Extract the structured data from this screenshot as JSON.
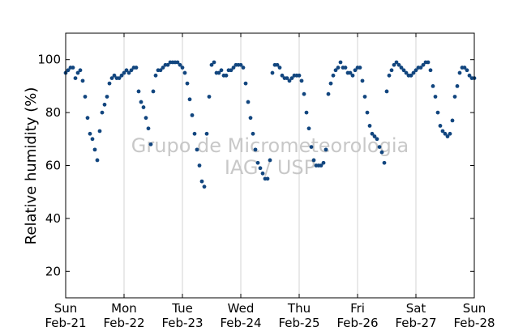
{
  "chart_data": {
    "type": "scatter",
    "title": "",
    "xlabel": "",
    "ylabel": "Relative humidity (%)",
    "ylim": [
      10,
      110
    ],
    "yticks": [
      20,
      40,
      60,
      80,
      100
    ],
    "xlim": [
      "2015-02-21 00:00",
      "2015-02-28 00:00"
    ],
    "xticks": [
      {
        "day": "Sun",
        "date": "Feb-21"
      },
      {
        "day": "Mon",
        "date": "Feb-22"
      },
      {
        "day": "Tue",
        "date": "Feb-23"
      },
      {
        "day": "Wed",
        "date": "Feb-24"
      },
      {
        "day": "Thu",
        "date": "Feb-25"
      },
      {
        "day": "Fri",
        "date": "Feb-26"
      },
      {
        "day": "Sat",
        "date": "Feb-27"
      },
      {
        "day": "Sun",
        "date": "Feb-28"
      }
    ],
    "grid": "vertical",
    "watermark": [
      "Grupo de Micrometeorologia",
      "IAG / USP"
    ],
    "marker_color": "#12467f",
    "series": [
      {
        "x": [
          "2015-02-21 00:00",
          "2015-02-21 01:00",
          "2015-02-21 02:00",
          "2015-02-21 03:00",
          "2015-02-21 04:00",
          "2015-02-21 05:00",
          "2015-02-21 06:00",
          "2015-02-21 07:00",
          "2015-02-21 08:00",
          "2015-02-21 09:00",
          "2015-02-21 10:00",
          "2015-02-21 11:00",
          "2015-02-21 12:00",
          "2015-02-21 13:00",
          "2015-02-21 14:00",
          "2015-02-21 15:00",
          "2015-02-21 16:00",
          "2015-02-21 17:00",
          "2015-02-21 18:00",
          "2015-02-21 19:00",
          "2015-02-21 20:00",
          "2015-02-21 21:00",
          "2015-02-21 22:00",
          "2015-02-21 23:00",
          "2015-02-22 00:00",
          "2015-02-22 01:00",
          "2015-02-22 02:00",
          "2015-02-22 03:00",
          "2015-02-22 04:00",
          "2015-02-22 05:00",
          "2015-02-22 06:00",
          "2015-02-22 07:00",
          "2015-02-22 08:00",
          "2015-02-22 09:00",
          "2015-02-22 10:00",
          "2015-02-22 11:00",
          "2015-02-22 12:00",
          "2015-02-22 13:00",
          "2015-02-22 14:00",
          "2015-02-22 15:00",
          "2015-02-22 16:00",
          "2015-02-22 17:00",
          "2015-02-22 18:00",
          "2015-02-22 19:00",
          "2015-02-22 20:00",
          "2015-02-22 21:00",
          "2015-02-22 22:00",
          "2015-02-22 23:00",
          "2015-02-23 00:00",
          "2015-02-23 01:00",
          "2015-02-23 02:00",
          "2015-02-23 03:00",
          "2015-02-23 04:00",
          "2015-02-23 05:00",
          "2015-02-23 06:00",
          "2015-02-23 07:00",
          "2015-02-23 08:00",
          "2015-02-23 09:00",
          "2015-02-23 10:00",
          "2015-02-23 11:00",
          "2015-02-23 12:00",
          "2015-02-23 13:00",
          "2015-02-23 14:00",
          "2015-02-23 15:00",
          "2015-02-23 16:00",
          "2015-02-23 17:00",
          "2015-02-23 18:00",
          "2015-02-23 19:00",
          "2015-02-23 20:00",
          "2015-02-23 21:00",
          "2015-02-23 22:00",
          "2015-02-23 23:00",
          "2015-02-24 00:00",
          "2015-02-24 01:00",
          "2015-02-24 02:00",
          "2015-02-24 03:00",
          "2015-02-24 04:00",
          "2015-02-24 05:00",
          "2015-02-24 06:00",
          "2015-02-24 07:00",
          "2015-02-24 08:00",
          "2015-02-24 09:00",
          "2015-02-24 10:00",
          "2015-02-24 11:00",
          "2015-02-24 12:00",
          "2015-02-24 13:00",
          "2015-02-24 14:00",
          "2015-02-24 15:00",
          "2015-02-24 16:00",
          "2015-02-24 17:00",
          "2015-02-24 18:00",
          "2015-02-24 19:00",
          "2015-02-24 20:00",
          "2015-02-24 21:00",
          "2015-02-24 22:00",
          "2015-02-24 23:00",
          "2015-02-25 00:00",
          "2015-02-25 01:00",
          "2015-02-25 02:00",
          "2015-02-25 03:00",
          "2015-02-25 04:00",
          "2015-02-25 05:00",
          "2015-02-25 06:00",
          "2015-02-25 07:00",
          "2015-02-25 08:00",
          "2015-02-25 09:00",
          "2015-02-25 10:00",
          "2015-02-25 11:00",
          "2015-02-25 12:00",
          "2015-02-25 13:00",
          "2015-02-25 14:00",
          "2015-02-25 15:00",
          "2015-02-25 16:00",
          "2015-02-25 17:00",
          "2015-02-25 18:00",
          "2015-02-25 19:00",
          "2015-02-25 20:00",
          "2015-02-25 21:00",
          "2015-02-25 22:00",
          "2015-02-25 23:00",
          "2015-02-26 00:00",
          "2015-02-26 01:00",
          "2015-02-26 02:00",
          "2015-02-26 03:00",
          "2015-02-26 04:00",
          "2015-02-26 05:00",
          "2015-02-26 06:00",
          "2015-02-26 07:00",
          "2015-02-26 08:00",
          "2015-02-26 09:00",
          "2015-02-26 10:00",
          "2015-02-26 11:00",
          "2015-02-26 12:00",
          "2015-02-26 13:00",
          "2015-02-26 14:00",
          "2015-02-26 15:00",
          "2015-02-26 16:00",
          "2015-02-26 17:00",
          "2015-02-26 18:00",
          "2015-02-26 19:00",
          "2015-02-26 20:00",
          "2015-02-26 21:00",
          "2015-02-26 22:00",
          "2015-02-26 23:00",
          "2015-02-27 00:00",
          "2015-02-27 01:00",
          "2015-02-27 02:00",
          "2015-02-27 03:00",
          "2015-02-27 04:00",
          "2015-02-27 05:00",
          "2015-02-27 06:00",
          "2015-02-27 07:00",
          "2015-02-27 08:00",
          "2015-02-27 09:00",
          "2015-02-27 10:00",
          "2015-02-27 11:00",
          "2015-02-27 12:00",
          "2015-02-27 13:00",
          "2015-02-27 14:00",
          "2015-02-27 15:00",
          "2015-02-27 16:00",
          "2015-02-27 17:00",
          "2015-02-27 18:00",
          "2015-02-27 19:00",
          "2015-02-27 20:00",
          "2015-02-27 21:00",
          "2015-02-27 22:00",
          "2015-02-27 23:00",
          "2015-02-28 00:00"
        ],
        "y": [
          95,
          96,
          97,
          97,
          93,
          95,
          96,
          92,
          86,
          78,
          72,
          70,
          66,
          62,
          73,
          80,
          83,
          86,
          91,
          93,
          94,
          93,
          93,
          94,
          95,
          96,
          95,
          96,
          97,
          97,
          88,
          84,
          82,
          78,
          74,
          68,
          88,
          94,
          96,
          96,
          97,
          98,
          98,
          99,
          99,
          99,
          99,
          98,
          97,
          95,
          91,
          85,
          79,
          72,
          66,
          60,
          54,
          52,
          72,
          86,
          98,
          99,
          95,
          95,
          96,
          94,
          94,
          96,
          96,
          97,
          98,
          98,
          98,
          97,
          91,
          84,
          78,
          72,
          66,
          61,
          59,
          57,
          55,
          55,
          62,
          95,
          98,
          98,
          97,
          94,
          93,
          93,
          92,
          93,
          94,
          94,
          94,
          92,
          87,
          80,
          74,
          67,
          62,
          60,
          60,
          60,
          61,
          66,
          87,
          91,
          94,
          96,
          97,
          99,
          97,
          97,
          95,
          95,
          94,
          96,
          97,
          97,
          92,
          86,
          80,
          75,
          72,
          71,
          70,
          67,
          65,
          61,
          88,
          94,
          96,
          98,
          99,
          98,
          97,
          96,
          95,
          94,
          94,
          95,
          96,
          97,
          97,
          98,
          99,
          99,
          96,
          90,
          86,
          80,
          75,
          73,
          72,
          71,
          72,
          77,
          86,
          90,
          95,
          97,
          97,
          96,
          94,
          93,
          93
        ]
      }
    ]
  }
}
